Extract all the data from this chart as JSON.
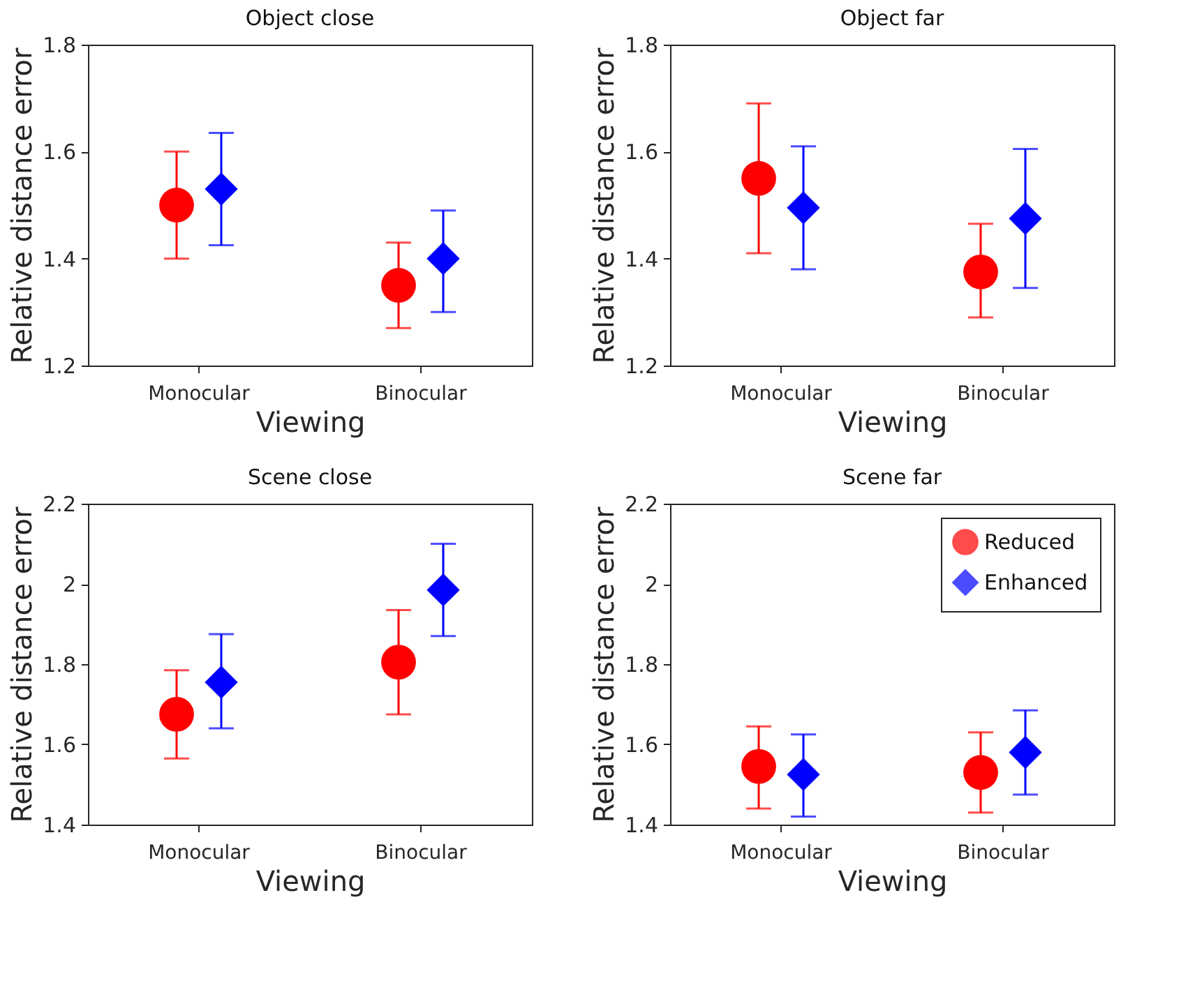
{
  "chart_data": [
    {
      "type": "scatter",
      "title": "Object close",
      "xlabel": "Viewing",
      "ylabel": "Relative distance error",
      "categories": [
        "Monocular",
        "Binocular"
      ],
      "ylim": [
        1.2,
        1.8
      ],
      "yticks": [
        1.2,
        1.4,
        1.6,
        1.8
      ],
      "grid": false,
      "series": [
        {
          "color": "#ff0000",
          "marker": "circle",
          "values": [
            1.5,
            1.35
          ],
          "errors": [
            [
              1.4,
              1.6
            ],
            [
              1.27,
              1.43
            ]
          ]
        },
        {
          "color": "#0000ff",
          "marker": "diamond",
          "values": [
            1.53,
            1.4
          ],
          "errors": [
            [
              1.425,
              1.635
            ],
            [
              1.3,
              1.49
            ]
          ]
        }
      ]
    },
    {
      "type": "scatter",
      "title": "Object far",
      "xlabel": "Viewing",
      "ylabel": "Relative distance error",
      "categories": [
        "Monocular",
        "Binocular"
      ],
      "ylim": [
        1.2,
        1.8
      ],
      "yticks": [
        1.2,
        1.4,
        1.6,
        1.8
      ],
      "grid": false,
      "series": [
        {
          "color": "#ff0000",
          "marker": "circle",
          "values": [
            1.55,
            1.375
          ],
          "errors": [
            [
              1.41,
              1.69
            ],
            [
              1.29,
              1.465
            ]
          ]
        },
        {
          "color": "#0000ff",
          "marker": "diamond",
          "values": [
            1.495,
            1.475
          ],
          "errors": [
            [
              1.38,
              1.61
            ],
            [
              1.345,
              1.605
            ]
          ]
        }
      ]
    },
    {
      "type": "scatter",
      "title": "Scene close",
      "xlabel": "Viewing",
      "ylabel": "Relative distance error",
      "categories": [
        "Monocular",
        "Binocular"
      ],
      "ylim": [
        1.4,
        2.2
      ],
      "yticks": [
        1.4,
        1.6,
        1.8,
        2,
        2.2
      ],
      "grid": false,
      "series": [
        {
          "color": "#ff0000",
          "marker": "circle",
          "values": [
            1.675,
            1.805
          ],
          "errors": [
            [
              1.565,
              1.785
            ],
            [
              1.675,
              1.935
            ]
          ]
        },
        {
          "color": "#0000ff",
          "marker": "diamond",
          "values": [
            1.755,
            1.985
          ],
          "errors": [
            [
              1.64,
              1.875
            ],
            [
              1.87,
              2.1
            ]
          ]
        }
      ]
    },
    {
      "type": "scatter",
      "title": "Scene far",
      "xlabel": "Viewing",
      "ylabel": "Relative distance error",
      "categories": [
        "Monocular",
        "Binocular"
      ],
      "ylim": [
        1.4,
        2.2
      ],
      "yticks": [
        1.4,
        1.6,
        1.8,
        2,
        2.2
      ],
      "grid": false,
      "legend": "top right",
      "series": [
        {
          "name": "Reduced",
          "color": "#ff0000",
          "marker": "circle",
          "values": [
            1.545,
            1.53
          ],
          "errors": [
            [
              1.44,
              1.645
            ],
            [
              1.43,
              1.63
            ]
          ]
        },
        {
          "name": "Enhanced",
          "color": "#0000ff",
          "marker": "diamond",
          "values": [
            1.525,
            1.58
          ],
          "errors": [
            [
              1.42,
              1.625
            ],
            [
              1.475,
              1.685
            ]
          ]
        }
      ]
    }
  ]
}
